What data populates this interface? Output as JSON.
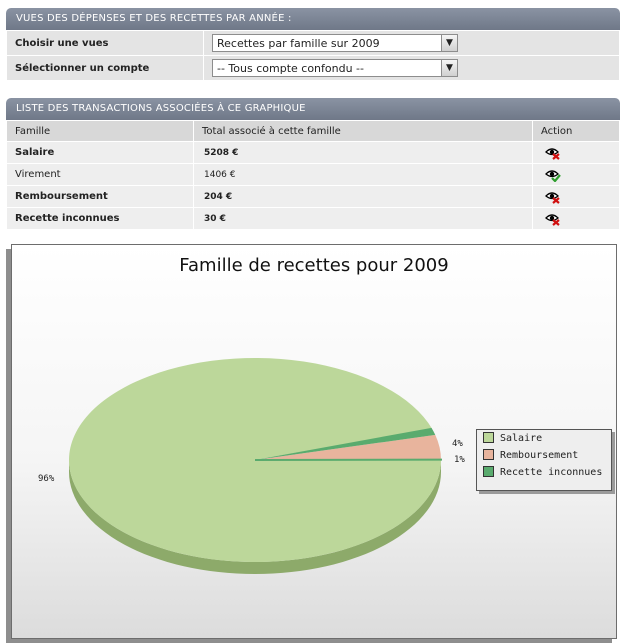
{
  "views_panel": {
    "title": "VUES DES DÉPENSES ET DES RECETTES PAR ANNÉE :",
    "view_label": "Choisir une vues",
    "view_value": "Recettes par famille sur 2009",
    "account_label": "Sélectionner un compte",
    "account_value": "-- Tous compte confondu --"
  },
  "list_panel": {
    "title": "LISTE DES TRANSACTIONS ASSOCIÉES À CE GRAPHIQUE",
    "headers": [
      "Famille",
      "Total associé à cette famille",
      "Action"
    ],
    "rows": [
      {
        "famille": "Salaire",
        "total": "5208 €",
        "action_icon": "eye-delete-icon"
      },
      {
        "famille": "Virement",
        "total": "1406 €",
        "action_icon": "eye-check-icon"
      },
      {
        "famille": "Remboursement",
        "total": "204 €",
        "action_icon": "eye-delete-icon"
      },
      {
        "famille": "Recette inconnues",
        "total": "30 €",
        "action_icon": "eye-delete-icon"
      }
    ]
  },
  "colors": {
    "salaire": "#bcd79a",
    "remboursement": "#e8b49d",
    "recette_inconnues": "#5aab6e"
  },
  "chart_data": {
    "type": "pie",
    "title": "Famille de recettes pour 2009",
    "slices": [
      {
        "label": "Salaire",
        "value": 96,
        "display": "96%"
      },
      {
        "label": "Remboursement",
        "value": 4,
        "display": "4%"
      },
      {
        "label": "Recette inconnues",
        "value": 1,
        "display": "1%"
      }
    ],
    "legend": [
      "Salaire",
      "Remboursement",
      "Recette inconnues"
    ],
    "legend_position": "right"
  }
}
